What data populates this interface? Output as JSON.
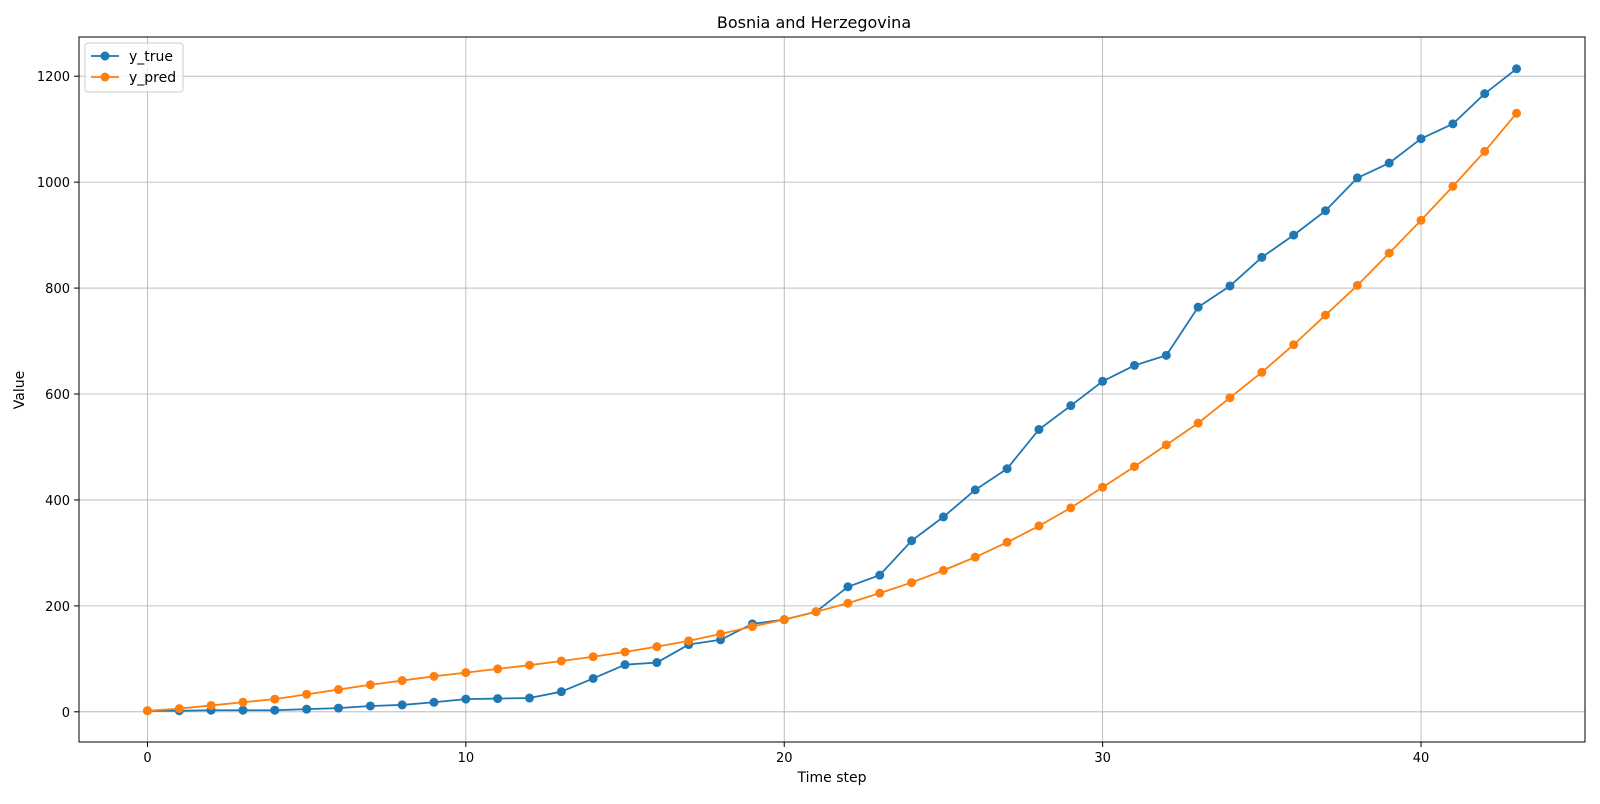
{
  "chart_data": {
    "type": "line",
    "title": "Bosnia and Herzegovina",
    "xlabel": "Time step",
    "ylabel": "Value",
    "xlim": [
      -2.15,
      45.15
    ],
    "ylim": [
      -57,
      1274
    ],
    "xticks": [
      0,
      10,
      20,
      30,
      40
    ],
    "yticks": [
      0,
      200,
      400,
      600,
      800,
      1000,
      1200
    ],
    "grid": true,
    "legend_position": "top-left",
    "x": [
      0,
      1,
      2,
      3,
      4,
      5,
      6,
      7,
      8,
      9,
      10,
      11,
      12,
      13,
      14,
      15,
      16,
      17,
      18,
      19,
      20,
      21,
      22,
      23,
      24,
      25,
      26,
      27,
      28,
      29,
      30,
      31,
      32,
      33,
      34,
      35,
      36,
      37,
      38,
      39,
      40,
      41,
      42,
      43
    ],
    "series": [
      {
        "name": "y_true",
        "color": "#1f77b4",
        "marker": "circle",
        "values": [
          2,
          2,
          3,
          3,
          3,
          5,
          7,
          11,
          13,
          18,
          24,
          25,
          26,
          38,
          63,
          89,
          93,
          127,
          136,
          166,
          174,
          189,
          236,
          258,
          323,
          368,
          419,
          459,
          533,
          578,
          624,
          654,
          673,
          764,
          804,
          858,
          900,
          946,
          1008,
          1036,
          1082,
          1110,
          1167,
          1214
        ]
      },
      {
        "name": "y_pred",
        "color": "#ff7f0e",
        "marker": "circle",
        "values": [
          2,
          6,
          12,
          18,
          24,
          33,
          42,
          51,
          59,
          67,
          74,
          81,
          88,
          96,
          104,
          113,
          123,
          134,
          147,
          161,
          174,
          189,
          205,
          224,
          244,
          267,
          292,
          320,
          351,
          385,
          424,
          463,
          504,
          545,
          593,
          641,
          693,
          749,
          805,
          866,
          928,
          992,
          1058,
          1130
        ]
      }
    ]
  }
}
